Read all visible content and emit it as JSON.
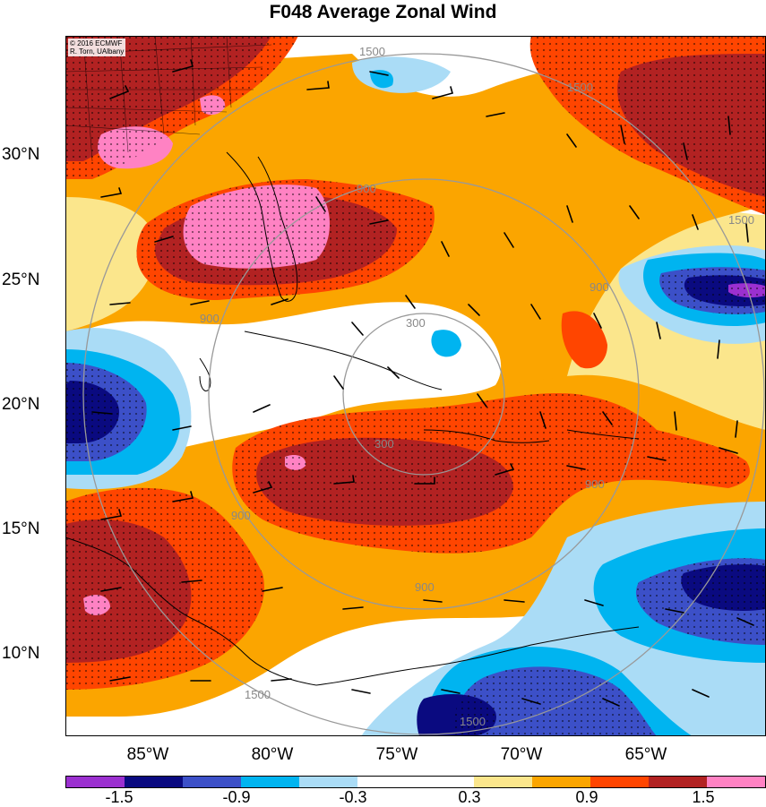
{
  "title": "F048 Average Zonal Wind",
  "copyright": [
    "© 2016 ECMWF",
    "R. Torn, UAlbany"
  ],
  "lat_labels": [
    "30°N",
    "25°N",
    "20°N",
    "15°N",
    "10°N"
  ],
  "lon_labels": [
    "85°W",
    "80°W",
    "75°W",
    "70°W",
    "65°W"
  ],
  "colorbar": {
    "colors": [
      "#9b30d0",
      "#0a0a80",
      "#3c50c8",
      "#00b4f0",
      "#aadcf6",
      "#ffffff",
      "#ffffff",
      "#fbe68c",
      "#fba500",
      "#ff4500",
      "#b22222",
      "#ff82c3"
    ],
    "labels": [
      "-1.5",
      "-0.9",
      "-0.3",
      "0.3",
      "0.9",
      "1.5"
    ]
  },
  "contour_labels": [
    "1500",
    "1500",
    "1500",
    "1500",
    "1500",
    "900",
    "900",
    "900",
    "900",
    "900",
    "900",
    "300",
    "300"
  ]
}
